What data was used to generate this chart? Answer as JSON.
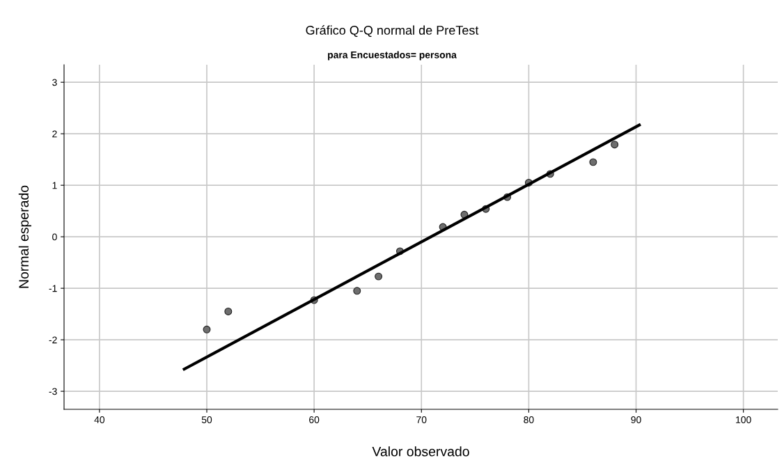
{
  "chart_data": {
    "type": "scatter",
    "title": "Gráfico Q-Q normal de PreTest",
    "subtitle": "para Encuestados= persona",
    "xlabel": "Valor observado",
    "ylabel": "Normal esperado",
    "series": [
      {
        "marker": "circle",
        "color": "#6e6e6e",
        "x": [
          50,
          52,
          60,
          64,
          66,
          68,
          72,
          74,
          76,
          78,
          80,
          82,
          86,
          88
        ],
        "values": [
          -1.8,
          -1.45,
          -1.23,
          -1.05,
          -0.77,
          -0.28,
          0.19,
          0.43,
          0.54,
          0.77,
          1.05,
          1.22,
          1.45,
          1.79
        ]
      },
      {
        "type": "line",
        "color": "#000000",
        "x": [
          47.9,
          90.3
        ],
        "values": [
          -2.57,
          2.17
        ]
      }
    ],
    "xlim": [
      36.7,
      103.2
    ],
    "ylim": [
      -3.35,
      3.34
    ],
    "xticks": [
      40,
      50,
      60,
      70,
      80,
      90,
      100
    ],
    "yticks": [
      -3,
      -2,
      -1,
      0,
      1,
      2,
      3
    ],
    "grid": true
  }
}
